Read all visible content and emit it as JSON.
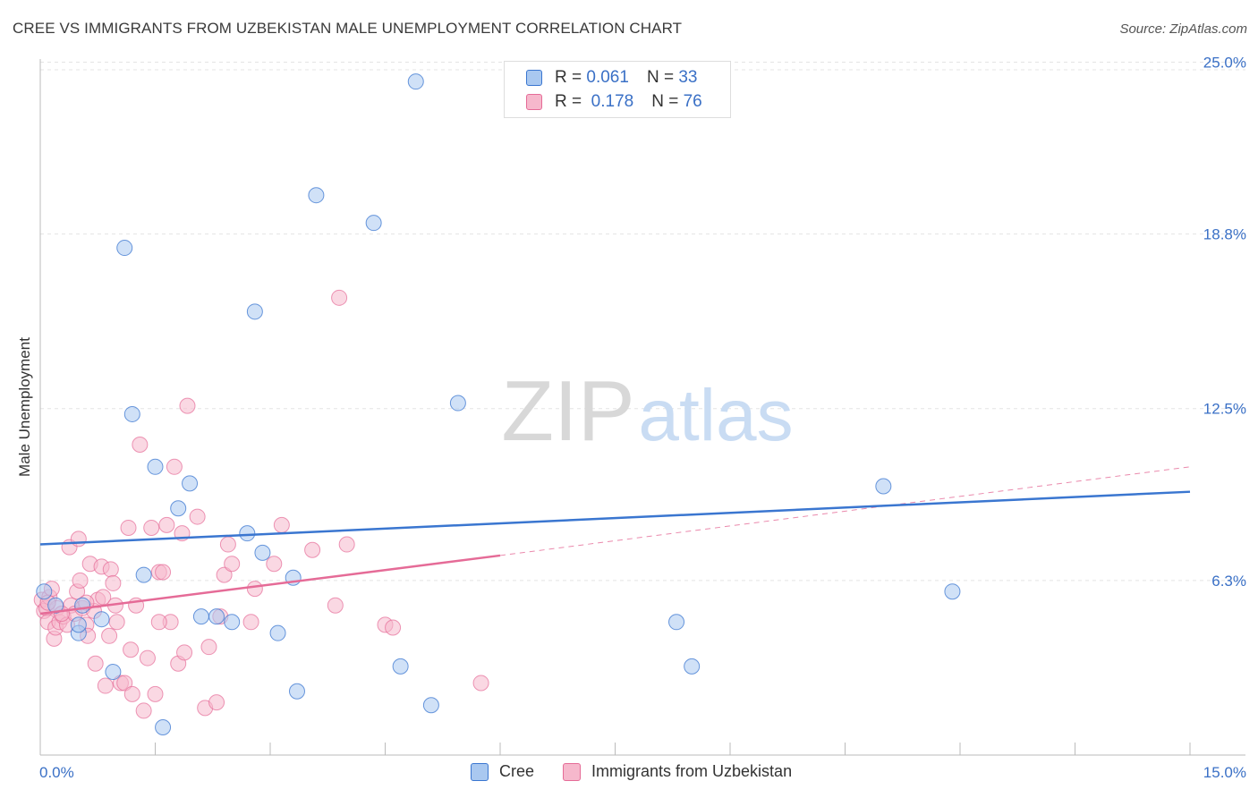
{
  "title": "CREE VS IMMIGRANTS FROM UZBEKISTAN MALE UNEMPLOYMENT CORRELATION CHART",
  "source": "Source: ZipAtlas.com",
  "watermark": {
    "zip": "ZIP",
    "atlas": "atlas"
  },
  "legend": {
    "rows": [
      {
        "r_label": "R =",
        "r_value": "0.061",
        "n_label": "N =",
        "n_value": "33"
      },
      {
        "r_label": "R =",
        "r_value": "0.178",
        "n_label": "N =",
        "n_value": "76"
      }
    ]
  },
  "bottom_legend": {
    "cree": "Cree",
    "uzbekistan": "Immigrants from Uzbekistan"
  },
  "colors": {
    "cree": "#3a76d0",
    "cree_fill": "#a9c8f0",
    "uzbekistan": "#e56b97",
    "uzbekistan_fill": "#f6b8cc",
    "value_text": "#3a70c6"
  },
  "chart_data": {
    "type": "scatter",
    "title": "CREE VS IMMIGRANTS FROM UZBEKISTAN MALE UNEMPLOYMENT CORRELATION CHART",
    "xlabel": "",
    "ylabel": "Male Unemployment",
    "xlim": [
      0,
      15
    ],
    "ylim": [
      0,
      25.5
    ],
    "x_tick_labels": [
      "0.0%",
      "15.0%"
    ],
    "y_ticks": [
      6.3,
      12.5,
      18.8,
      25.0
    ],
    "y_tick_labels": [
      "6.3%",
      "12.5%",
      "18.8%",
      "25.0%"
    ],
    "grid": true,
    "series": [
      {
        "name": "Cree",
        "r": 0.061,
        "n": 33,
        "trend": {
          "x": [
            0,
            15
          ],
          "y": [
            7.6,
            9.5
          ],
          "style": "solid"
        },
        "points": [
          [
            0.05,
            5.9
          ],
          [
            0.2,
            5.4
          ],
          [
            0.5,
            4.4
          ],
          [
            0.5,
            4.7
          ],
          [
            0.55,
            5.4
          ],
          [
            0.8,
            4.9
          ],
          [
            0.95,
            3.0
          ],
          [
            1.1,
            18.3
          ],
          [
            1.2,
            12.3
          ],
          [
            1.35,
            6.5
          ],
          [
            1.5,
            10.4
          ],
          [
            1.6,
            1.0
          ],
          [
            1.8,
            8.9
          ],
          [
            1.95,
            9.8
          ],
          [
            2.1,
            5.0
          ],
          [
            2.3,
            5.0
          ],
          [
            2.5,
            4.8
          ],
          [
            2.7,
            8.0
          ],
          [
            2.8,
            16.0
          ],
          [
            2.9,
            7.3
          ],
          [
            3.1,
            4.4
          ],
          [
            3.3,
            6.4
          ],
          [
            3.35,
            2.3
          ],
          [
            3.6,
            20.2
          ],
          [
            4.35,
            19.2
          ],
          [
            4.7,
            3.2
          ],
          [
            4.9,
            24.3
          ],
          [
            5.1,
            1.8
          ],
          [
            5.45,
            12.7
          ],
          [
            8.3,
            4.8
          ],
          [
            8.5,
            3.2
          ],
          [
            11.0,
            9.7
          ],
          [
            11.9,
            5.9
          ]
        ]
      },
      {
        "name": "Immigrants from Uzbekistan",
        "r": 0.178,
        "n": 76,
        "trend": {
          "x": [
            0,
            6.0
          ],
          "y": [
            5.1,
            7.2
          ],
          "style": "solid"
        },
        "trend_extension": {
          "x": [
            6.0,
            15
          ],
          "y": [
            7.2,
            10.4
          ],
          "style": "dashed"
        },
        "points": [
          [
            0.02,
            5.6
          ],
          [
            0.05,
            5.2
          ],
          [
            0.08,
            5.3
          ],
          [
            0.1,
            4.8
          ],
          [
            0.12,
            5.7
          ],
          [
            0.15,
            6.0
          ],
          [
            0.18,
            4.2
          ],
          [
            0.2,
            4.6
          ],
          [
            0.22,
            5.3
          ],
          [
            0.25,
            4.8
          ],
          [
            0.3,
            5.0
          ],
          [
            0.35,
            4.7
          ],
          [
            0.38,
            7.5
          ],
          [
            0.4,
            5.4
          ],
          [
            0.45,
            5.1
          ],
          [
            0.48,
            5.9
          ],
          [
            0.5,
            7.8
          ],
          [
            0.52,
            6.3
          ],
          [
            0.55,
            5.3
          ],
          [
            0.6,
            4.7
          ],
          [
            0.62,
            4.3
          ],
          [
            0.65,
            6.9
          ],
          [
            0.7,
            5.2
          ],
          [
            0.72,
            3.3
          ],
          [
            0.75,
            5.6
          ],
          [
            0.8,
            6.8
          ],
          [
            0.82,
            5.7
          ],
          [
            0.85,
            2.5
          ],
          [
            0.9,
            4.3
          ],
          [
            0.92,
            6.7
          ],
          [
            0.95,
            6.2
          ],
          [
            0.98,
            5.4
          ],
          [
            1.0,
            4.8
          ],
          [
            1.05,
            2.6
          ],
          [
            1.1,
            2.6
          ],
          [
            1.15,
            8.2
          ],
          [
            1.18,
            3.8
          ],
          [
            1.2,
            2.2
          ],
          [
            1.25,
            5.4
          ],
          [
            1.3,
            11.2
          ],
          [
            1.35,
            1.6
          ],
          [
            1.4,
            3.5
          ],
          [
            1.45,
            8.2
          ],
          [
            1.5,
            2.2
          ],
          [
            1.55,
            6.6
          ],
          [
            1.6,
            6.6
          ],
          [
            1.65,
            8.3
          ],
          [
            1.7,
            4.8
          ],
          [
            1.75,
            10.4
          ],
          [
            1.8,
            3.3
          ],
          [
            1.85,
            8.0
          ],
          [
            1.88,
            3.7
          ],
          [
            1.92,
            12.6
          ],
          [
            2.05,
            8.6
          ],
          [
            2.15,
            1.7
          ],
          [
            2.2,
            3.9
          ],
          [
            2.3,
            1.9
          ],
          [
            2.35,
            5.0
          ],
          [
            2.4,
            6.5
          ],
          [
            2.45,
            7.6
          ],
          [
            2.5,
            6.9
          ],
          [
            2.75,
            4.8
          ],
          [
            2.8,
            6.0
          ],
          [
            3.05,
            6.9
          ],
          [
            3.15,
            8.3
          ],
          [
            3.55,
            7.4
          ],
          [
            3.85,
            5.4
          ],
          [
            3.9,
            16.5
          ],
          [
            4.0,
            7.6
          ],
          [
            4.5,
            4.7
          ],
          [
            4.6,
            4.6
          ],
          [
            5.75,
            2.6
          ],
          [
            0.1,
            5.5
          ],
          [
            0.28,
            5.1
          ],
          [
            1.55,
            4.8
          ],
          [
            0.6,
            5.5
          ]
        ]
      }
    ]
  }
}
